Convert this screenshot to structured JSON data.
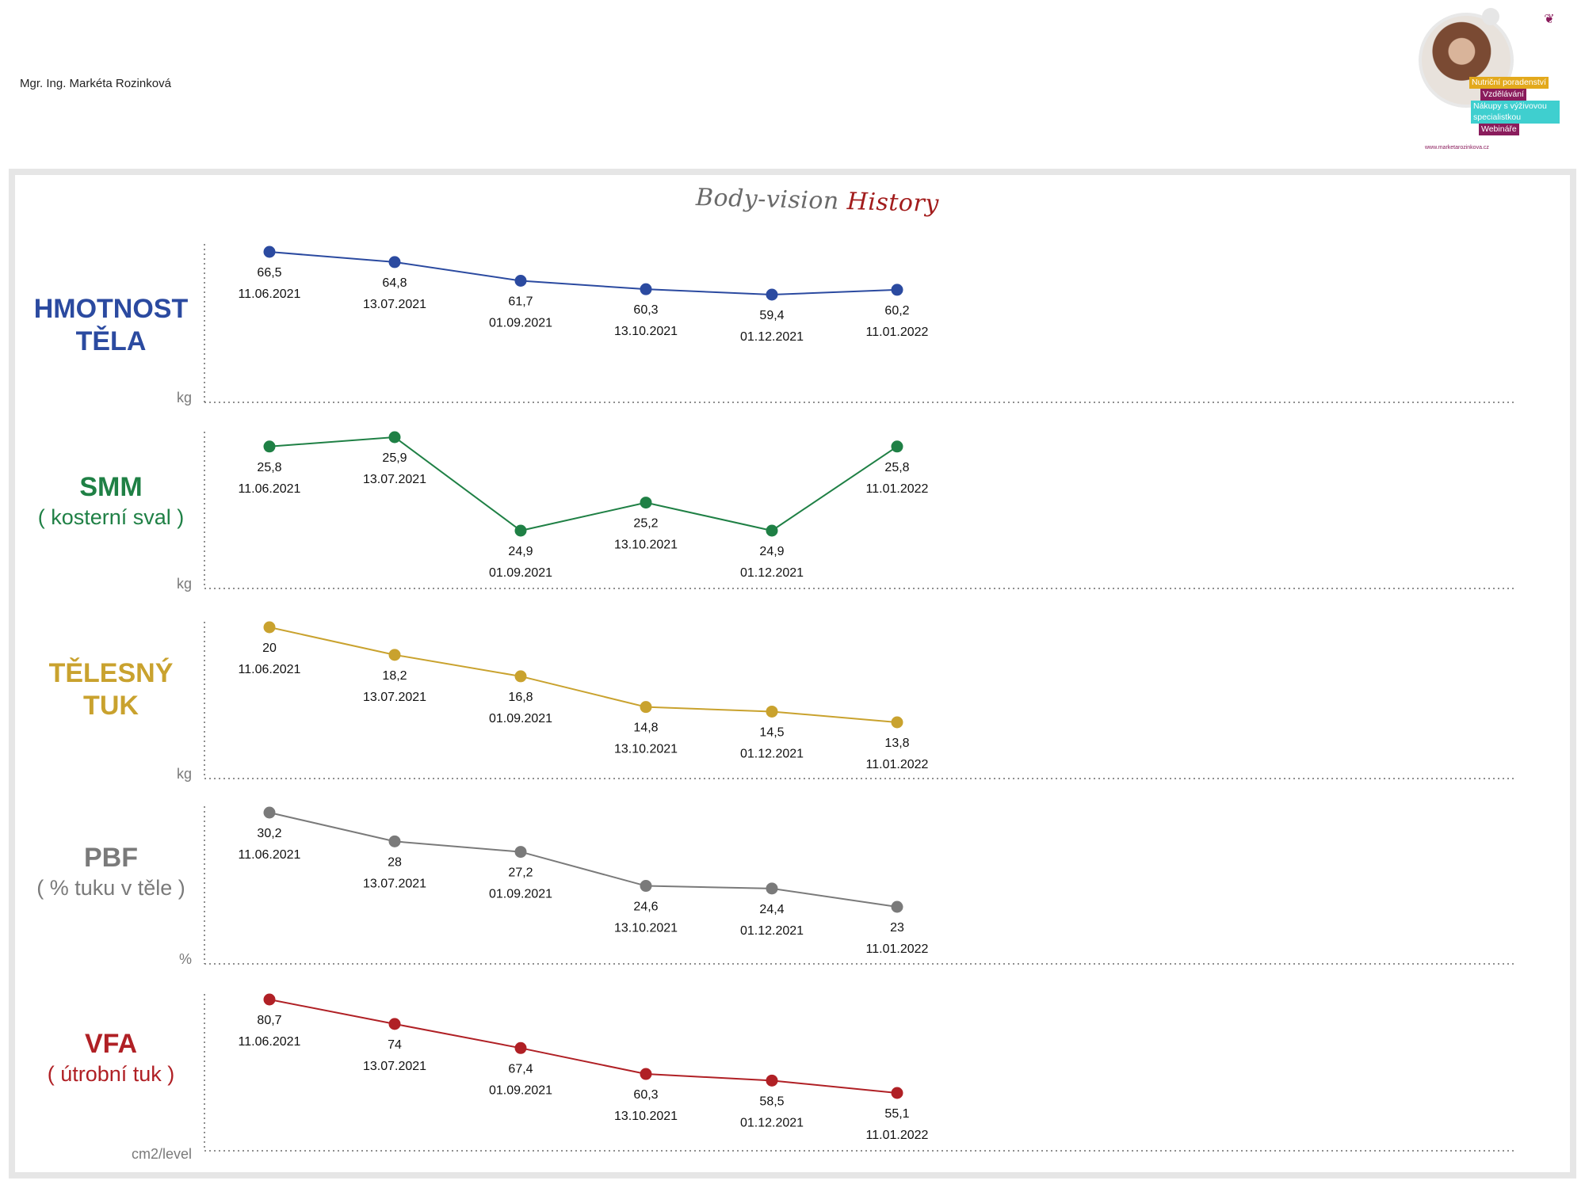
{
  "header": {
    "author": "Mgr. Ing. Markéta Rozinková",
    "logo": {
      "tags": [
        "Nutriční poradenství",
        "Vzdělávání",
        "Nákupy s výživovou",
        "specialistkou",
        "Webináře"
      ],
      "url": "www.marketarozinkova.cz"
    }
  },
  "title": {
    "part1": "Body-vision",
    "part2": "History"
  },
  "colors": {
    "weight": "#2b4aa0",
    "smm": "#1f8045",
    "fat": "#c9a22e",
    "pbf": "#7a7a7a",
    "vfa": "#b02025",
    "axis": "#6a6a6a"
  },
  "chart_data": [
    {
      "type": "line",
      "name_main": "HMOTNOST TĚLA",
      "name_sub": "",
      "unit": "kg",
      "color": "#2b4aa0",
      "x": [
        "11.06.2021",
        "13.07.2021",
        "01.09.2021",
        "13.10.2021",
        "01.12.2021",
        "11.01.2022"
      ],
      "labels": [
        "66,5",
        "64,8",
        "61,7",
        "60,3",
        "59,4",
        "60,2"
      ],
      "values": [
        66.5,
        64.8,
        61.7,
        60.3,
        59.4,
        60.2
      ]
    },
    {
      "type": "line",
      "name_main": "SMM",
      "name_sub": "( kosterní sval )",
      "unit": "kg",
      "color": "#1f8045",
      "x": [
        "11.06.2021",
        "13.07.2021",
        "01.09.2021",
        "13.10.2021",
        "01.12.2021",
        "11.01.2022"
      ],
      "labels": [
        "25,8",
        "25,9",
        "24,9",
        "25,2",
        "24,9",
        "25,8"
      ],
      "values": [
        25.8,
        25.9,
        24.9,
        25.2,
        24.9,
        25.8
      ]
    },
    {
      "type": "line",
      "name_main": "TĚLESNÝ TUK",
      "name_sub": "",
      "unit": "kg",
      "color": "#c9a22e",
      "x": [
        "11.06.2021",
        "13.07.2021",
        "01.09.2021",
        "13.10.2021",
        "01.12.2021",
        "11.01.2022"
      ],
      "labels": [
        "20",
        "18,2",
        "16,8",
        "14,8",
        "14,5",
        "13,8"
      ],
      "values": [
        20,
        18.2,
        16.8,
        14.8,
        14.5,
        13.8
      ]
    },
    {
      "type": "line",
      "name_main": "PBF",
      "name_sub": "( % tuku v těle )",
      "unit": "%",
      "color": "#7a7a7a",
      "x": [
        "11.06.2021",
        "13.07.2021",
        "01.09.2021",
        "13.10.2021",
        "01.12.2021",
        "11.01.2022"
      ],
      "labels": [
        "30,2",
        "28",
        "27,2",
        "24,6",
        "24,4",
        "23"
      ],
      "values": [
        30.2,
        28,
        27.2,
        24.6,
        24.4,
        23
      ]
    },
    {
      "type": "line",
      "name_main": "VFA",
      "name_sub": "( útrobní tuk )",
      "unit": "cm2/level",
      "color": "#b02025",
      "x": [
        "11.06.2021",
        "13.07.2021",
        "01.09.2021",
        "13.10.2021",
        "01.12.2021",
        "11.01.2022"
      ],
      "labels": [
        "80,7",
        "74",
        "67,4",
        "60,3",
        "58,5",
        "55,1"
      ],
      "values": [
        80.7,
        74,
        67.4,
        60.3,
        58.5,
        55.1
      ]
    }
  ]
}
